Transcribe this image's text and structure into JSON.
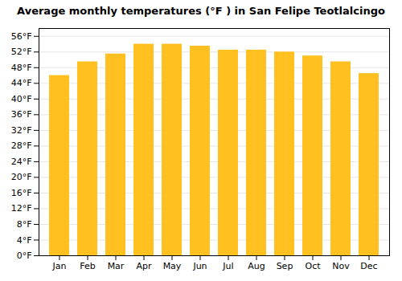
{
  "chart_data": {
    "type": "bar",
    "title": "Average monthly temperatures (°F ) in San Felipe Teotlalcingo",
    "categories": [
      "Jan",
      "Feb",
      "Mar",
      "Apr",
      "May",
      "Jun",
      "Jul",
      "Aug",
      "Sep",
      "Oct",
      "Nov",
      "Dec"
    ],
    "values": [
      46,
      49.5,
      51.5,
      54,
      54,
      53.5,
      52.5,
      52.5,
      52,
      51,
      49.5,
      46.5
    ],
    "color": "#FFC020",
    "ylim": [
      0,
      58
    ],
    "yticks": [
      {
        "value": 0,
        "label": "0°F"
      },
      {
        "value": 4,
        "label": "4°F"
      },
      {
        "value": 8,
        "label": "8°F"
      },
      {
        "value": 12,
        "label": "12°F"
      },
      {
        "value": 16,
        "label": "16°F"
      },
      {
        "value": 20,
        "label": "20°F"
      },
      {
        "value": 24,
        "label": "24°F"
      },
      {
        "value": 28,
        "label": "28°F"
      },
      {
        "value": 32,
        "label": "32°F"
      },
      {
        "value": 36,
        "label": "36°F"
      },
      {
        "value": 40,
        "label": "40°F"
      },
      {
        "value": 44,
        "label": "44°F"
      },
      {
        "value": 48,
        "label": "48°F"
      },
      {
        "value": 52,
        "label": "52°F"
      },
      {
        "value": 56,
        "label": "56°F"
      }
    ],
    "grid": true
  }
}
